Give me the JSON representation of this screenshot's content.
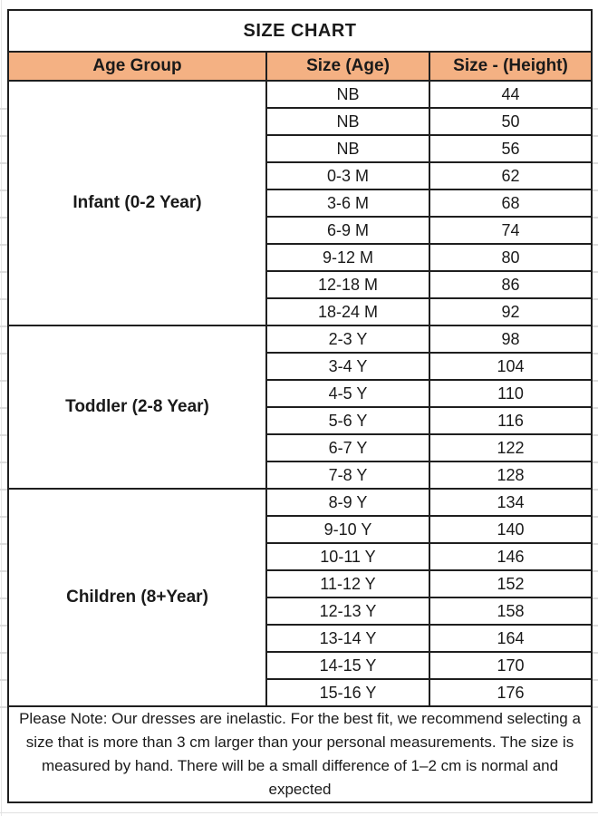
{
  "title": "SIZE CHART",
  "columns": {
    "age_group": "Age Group",
    "size_age": "Size (Age)",
    "size_height": "Size - (Height)"
  },
  "groups": [
    {
      "label": "Infant (0-2 Year)",
      "rows": [
        {
          "size": "NB",
          "height": "44"
        },
        {
          "size": "NB",
          "height": "50"
        },
        {
          "size": "NB",
          "height": "56"
        },
        {
          "size": "0-3 M",
          "height": "62"
        },
        {
          "size": "3-6 M",
          "height": "68"
        },
        {
          "size": "6-9 M",
          "height": "74"
        },
        {
          "size": "9-12 M",
          "height": "80"
        },
        {
          "size": "12-18 M",
          "height": "86"
        },
        {
          "size": "18-24 M",
          "height": "92"
        }
      ]
    },
    {
      "label": "Toddler (2-8 Year)",
      "rows": [
        {
          "size": "2-3 Y",
          "height": "98"
        },
        {
          "size": "3-4 Y",
          "height": "104"
        },
        {
          "size": "4-5 Y",
          "height": "110"
        },
        {
          "size": "5-6 Y",
          "height": "116"
        },
        {
          "size": "6-7 Y",
          "height": "122"
        },
        {
          "size": "7-8 Y",
          "height": "128"
        }
      ]
    },
    {
      "label": "Children (8+Year)",
      "rows": [
        {
          "size": "8-9 Y",
          "height": "134"
        },
        {
          "size": "9-10 Y",
          "height": "140"
        },
        {
          "size": "10-11 Y",
          "height": "146"
        },
        {
          "size": "11-12 Y",
          "height": "152"
        },
        {
          "size": "12-13 Y",
          "height": "158"
        },
        {
          "size": "13-14 Y",
          "height": "164"
        },
        {
          "size": "14-15 Y",
          "height": "170"
        },
        {
          "size": "15-16 Y",
          "height": "176"
        }
      ]
    }
  ],
  "note": "Please Note: Our dresses are inelastic. For the best fit, we recommend selecting a size that is more than 3 cm larger than your personal measurements. The size is measured by hand. There will be a small difference of 1–2 cm is normal and expected",
  "colors": {
    "header_bg": "#F4B183",
    "border": "#1F1F1F",
    "text": "#1A1A1A",
    "gridline": "#DCDCDC"
  }
}
